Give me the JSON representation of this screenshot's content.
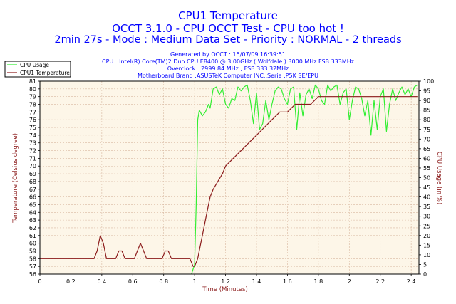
{
  "header": {
    "title": "CPU1 Temperature",
    "subtitle1": "OCCT 3.1.0 - CPU OCCT Test - CPU too hot !",
    "subtitle2": "2min 27s - Mode : Medium Data Set - Priority : NORMAL - 2 threads",
    "generated": "Generated by OCCT : 15/07/09 16:39:51",
    "cpu": "CPU : Intel(R) Core(TM)2 Duo CPU E8400 @ 3.00GHz ( Wolfdale ) 3000 MHz FSB 333MHz",
    "overclock": "Overclock : 2999.84 MHz ; FSB 333.32MHz",
    "motherboard": "Motherboard Brand :ASUSTeK Computer INC.,Serie :P5K SE/EPU"
  },
  "colors": {
    "temperature": "#8b1a1a",
    "usage": "#33ee33",
    "plot_background": "#fdf6e8",
    "grid": "#d8b8a0"
  },
  "chart_data": {
    "type": "line",
    "xlabel": "Time (Minutes)",
    "ylabel_left": "Temperature (Celsius degree)",
    "ylabel_right": "CPU Usage (in %)",
    "xlim": [
      0,
      2.45
    ],
    "ylim_left": [
      56,
      81
    ],
    "ylim_right": [
      0,
      100
    ],
    "x_ticks": [
      "0",
      "0.2",
      "0.4",
      "0.6",
      "0.8",
      "1",
      "1.2",
      "1.4",
      "1.6",
      "1.8",
      "2",
      "2.2",
      "2.4"
    ],
    "y_left_ticks": [
      "56",
      "57",
      "58",
      "59",
      "60",
      "61",
      "62",
      "63",
      "64",
      "65",
      "66",
      "67",
      "68",
      "69",
      "70",
      "71",
      "72",
      "73",
      "74",
      "75",
      "76",
      "77",
      "78",
      "79",
      "80",
      "81"
    ],
    "y_right_ticks": [
      "0",
      "5",
      "10",
      "15",
      "20",
      "25",
      "30",
      "35",
      "40",
      "45",
      "50",
      "55",
      "60",
      "65",
      "70",
      "75",
      "80",
      "85",
      "90",
      "95",
      "100"
    ],
    "grid": true,
    "legend_position": "top-left",
    "series": [
      {
        "name": "CPU Usage",
        "axis": "right",
        "x": [
          0.98,
          1.0,
          1.01,
          1.02,
          1.03,
          1.05,
          1.07,
          1.09,
          1.1,
          1.12,
          1.14,
          1.16,
          1.18,
          1.2,
          1.22,
          1.24,
          1.26,
          1.28,
          1.3,
          1.32,
          1.34,
          1.36,
          1.38,
          1.4,
          1.42,
          1.44,
          1.46,
          1.48,
          1.5,
          1.52,
          1.54,
          1.56,
          1.58,
          1.6,
          1.62,
          1.64,
          1.66,
          1.68,
          1.7,
          1.72,
          1.74,
          1.76,
          1.78,
          1.8,
          1.82,
          1.84,
          1.86,
          1.88,
          1.9,
          1.92,
          1.94,
          1.96,
          1.98,
          2.0,
          2.02,
          2.04,
          2.06,
          2.08,
          2.1,
          2.12,
          2.14,
          2.16,
          2.18,
          2.2,
          2.22,
          2.24,
          2.26,
          2.28,
          2.3,
          2.32,
          2.34,
          2.36,
          2.38,
          2.4,
          2.42,
          2.44
        ],
        "values": [
          0,
          5,
          35,
          80,
          85,
          82,
          84,
          88,
          86,
          96,
          97,
          93,
          96,
          88,
          86,
          91,
          90,
          97,
          95,
          97,
          98,
          90,
          78,
          94,
          75,
          78,
          90,
          80,
          88,
          95,
          97,
          96,
          91,
          88,
          96,
          97,
          75,
          94,
          82,
          93,
          96,
          91,
          98,
          96,
          90,
          88,
          98,
          95,
          97,
          98,
          88,
          94,
          96,
          80,
          90,
          97,
          96,
          91,
          82,
          90,
          72,
          90,
          75,
          92,
          96,
          74,
          88,
          96,
          90,
          94,
          97,
          93,
          96,
          92,
          97,
          98
        ]
      },
      {
        "name": "CPU1 Temperature",
        "axis": "left",
        "x": [
          0,
          0.05,
          0.1,
          0.15,
          0.2,
          0.25,
          0.3,
          0.35,
          0.37,
          0.39,
          0.41,
          0.43,
          0.45,
          0.47,
          0.49,
          0.51,
          0.53,
          0.55,
          0.57,
          0.59,
          0.61,
          0.63,
          0.65,
          0.67,
          0.69,
          0.71,
          0.73,
          0.75,
          0.77,
          0.79,
          0.81,
          0.83,
          0.85,
          0.87,
          0.89,
          0.91,
          0.93,
          0.95,
          0.97,
          0.99,
          1.0,
          1.02,
          1.05,
          1.08,
          1.1,
          1.12,
          1.15,
          1.18,
          1.2,
          1.25,
          1.3,
          1.35,
          1.4,
          1.45,
          1.5,
          1.55,
          1.6,
          1.65,
          1.7,
          1.75,
          1.8,
          1.85,
          1.9,
          1.95,
          2.0,
          2.05,
          2.1,
          2.15,
          2.2,
          2.25,
          2.3,
          2.35,
          2.4,
          2.44
        ],
        "values": [
          58,
          58,
          58,
          58,
          58,
          58,
          58,
          58,
          59,
          61,
          60,
          58,
          58,
          58,
          58,
          59,
          59,
          58,
          58,
          58,
          58,
          59,
          60,
          59,
          58,
          58,
          58,
          58,
          58,
          58,
          59,
          59,
          58,
          58,
          58,
          58,
          58,
          58,
          58,
          57,
          57,
          58,
          61,
          64,
          66,
          67,
          68,
          69,
          70,
          71,
          72,
          73,
          74,
          75,
          76,
          77,
          77,
          78,
          78,
          78,
          79,
          79,
          79,
          79,
          79,
          79,
          79,
          79,
          79,
          79,
          79,
          79,
          79,
          79
        ]
      }
    ]
  }
}
